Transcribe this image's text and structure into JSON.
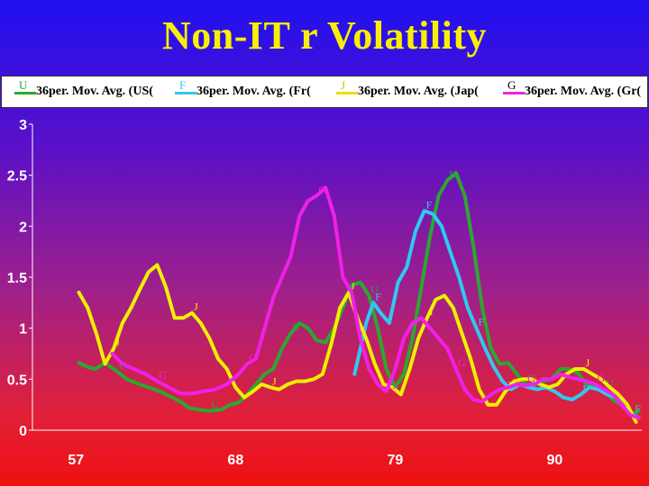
{
  "chart_data": {
    "type": "line",
    "title": "Non-IT r Volatility",
    "xlabel": "",
    "ylabel": "",
    "xlim": [
      54,
      96
    ],
    "ylim": [
      0,
      3
    ],
    "x_ticks": [
      "57",
      "68",
      "79",
      "90"
    ],
    "y_ticks": [
      "0",
      "0.5",
      "1",
      "1.5",
      "2",
      "2.5",
      "3"
    ],
    "series": [
      {
        "name": "36per. Mov. Avg. (US(",
        "symbol": "U",
        "color": "#2aa830",
        "x": [
          57.2,
          57.8,
          58.3,
          59,
          59.8,
          60.5,
          61.2,
          62,
          62.8,
          63.5,
          64.2,
          64.8,
          65.5,
          66.2,
          67,
          67.6,
          68.2,
          68.8,
          69.4,
          70,
          70.6,
          71.2,
          71.8,
          72.4,
          73,
          73.6,
          74.2,
          74.8,
          75.4,
          76,
          76.6,
          77.2,
          77.8,
          78.4,
          79,
          79.6,
          80.2,
          80.8,
          81.4,
          82,
          82.6,
          83.2,
          83.8,
          84.4,
          85,
          85.6,
          86.2,
          86.8,
          87.4,
          88,
          88.6,
          89.2,
          89.8,
          90.4,
          91,
          91.6,
          92.2,
          92.8,
          93.4,
          94,
          94.6,
          95.2,
          95.8
        ],
        "values": [
          0.66,
          0.62,
          0.6,
          0.66,
          0.58,
          0.5,
          0.46,
          0.42,
          0.38,
          0.33,
          0.28,
          0.22,
          0.2,
          0.19,
          0.2,
          0.25,
          0.27,
          0.35,
          0.45,
          0.55,
          0.6,
          0.8,
          0.95,
          1.05,
          1.0,
          0.88,
          0.86,
          1.0,
          1.2,
          1.42,
          1.45,
          1.32,
          1.0,
          0.6,
          0.42,
          0.55,
          0.9,
          1.4,
          1.9,
          2.3,
          2.45,
          2.52,
          2.3,
          1.8,
          1.2,
          0.8,
          0.65,
          0.66,
          0.55,
          0.45,
          0.44,
          0.48,
          0.5,
          0.6,
          0.6,
          0.56,
          0.45,
          0.42,
          0.4,
          0.3,
          0.25,
          0.15,
          0.19
        ]
      },
      {
        "name": "36per. Mov. Avg. (Fr(",
        "symbol": "F",
        "color": "#30c8f0",
        "x": [
          76.2,
          76.6,
          77,
          77.5,
          78,
          78.6,
          79.2,
          79.8,
          80.4,
          81,
          81.6,
          82.2,
          82.8,
          83.4,
          84,
          84.6,
          85.2,
          85.8,
          86.4,
          87,
          87.6,
          88.2,
          88.8,
          89.4,
          90,
          90.6,
          91.2,
          91.8,
          92.4,
          93,
          93.6,
          94.2,
          94.8,
          95.4,
          95.8
        ],
        "values": [
          0.55,
          0.8,
          1.05,
          1.25,
          1.15,
          1.05,
          1.45,
          1.6,
          1.95,
          2.15,
          2.12,
          2.0,
          1.75,
          1.5,
          1.2,
          1.0,
          0.8,
          0.62,
          0.48,
          0.4,
          0.45,
          0.42,
          0.4,
          0.42,
          0.38,
          0.32,
          0.3,
          0.35,
          0.42,
          0.4,
          0.35,
          0.32,
          0.22,
          0.15,
          0.12
        ]
      },
      {
        "name": "36per. Mov. Avg. (Jap(",
        "symbol": "J",
        "color": "#f0f000",
        "x": [
          57.2,
          57.8,
          58.4,
          59,
          59.6,
          60.2,
          60.8,
          61.4,
          62,
          62.6,
          63.2,
          63.8,
          64.4,
          65,
          65.6,
          66.2,
          66.8,
          67.4,
          68,
          68.6,
          69.2,
          69.8,
          70.4,
          71,
          71.6,
          72.2,
          72.8,
          73.4,
          74,
          74.6,
          75.2,
          75.8,
          76.4,
          77,
          77.6,
          78.2,
          78.8,
          79.4,
          80,
          80.6,
          81.2,
          81.8,
          82.4,
          83,
          83.6,
          84.2,
          84.8,
          85.4,
          86,
          86.6,
          87.2,
          87.8,
          88.4,
          89,
          89.6,
          90.2,
          90.8,
          91.4,
          92,
          92.6,
          93.2,
          93.8,
          94.4,
          95,
          95.6
        ],
        "values": [
          1.35,
          1.2,
          0.95,
          0.65,
          0.8,
          1.05,
          1.2,
          1.38,
          1.55,
          1.62,
          1.4,
          1.1,
          1.1,
          1.15,
          1.05,
          0.9,
          0.7,
          0.6,
          0.42,
          0.32,
          0.38,
          0.45,
          0.42,
          0.4,
          0.45,
          0.48,
          0.48,
          0.5,
          0.55,
          0.85,
          1.2,
          1.35,
          1.1,
          0.9,
          0.65,
          0.45,
          0.42,
          0.35,
          0.6,
          0.9,
          1.1,
          1.28,
          1.32,
          1.2,
          0.95,
          0.7,
          0.4,
          0.25,
          0.25,
          0.38,
          0.48,
          0.5,
          0.5,
          0.45,
          0.42,
          0.45,
          0.55,
          0.6,
          0.6,
          0.55,
          0.5,
          0.42,
          0.35,
          0.25,
          0.08
        ]
      },
      {
        "name": "36per. Mov. Avg. (Gr(",
        "symbol": "G",
        "color": "#f020e8",
        "x": [
          59.5,
          60.2,
          61,
          61.8,
          62.6,
          63.4,
          64.2,
          65,
          65.8,
          66.6,
          67.4,
          68.2,
          68.8,
          69.4,
          70,
          70.6,
          71.2,
          71.8,
          72.4,
          73,
          73.6,
          74.2,
          74.8,
          75.4,
          76,
          76.6,
          77.2,
          77.8,
          78.4,
          79,
          79.6,
          80.2,
          80.8,
          81.4,
          82,
          82.6,
          83.2,
          83.8,
          84.4,
          85,
          85.6,
          86.2,
          86.8,
          87.4,
          88,
          88.6,
          89.2,
          89.8,
          90.4,
          91,
          91.6,
          92.2,
          92.8,
          93.4,
          94,
          94.6,
          95.2,
          95.8
        ],
        "values": [
          0.75,
          0.65,
          0.6,
          0.55,
          0.48,
          0.42,
          0.36,
          0.36,
          0.38,
          0.4,
          0.45,
          0.55,
          0.65,
          0.7,
          1.0,
          1.3,
          1.5,
          1.7,
          2.1,
          2.25,
          2.3,
          2.38,
          2.1,
          1.5,
          1.35,
          0.9,
          0.6,
          0.45,
          0.38,
          0.6,
          0.9,
          1.05,
          1.1,
          1.0,
          0.9,
          0.8,
          0.6,
          0.4,
          0.3,
          0.28,
          0.35,
          0.4,
          0.42,
          0.45,
          0.44,
          0.45,
          0.5,
          0.5,
          0.55,
          0.52,
          0.5,
          0.48,
          0.45,
          0.4,
          0.35,
          0.25,
          0.15,
          0.12
        ]
      }
    ]
  }
}
